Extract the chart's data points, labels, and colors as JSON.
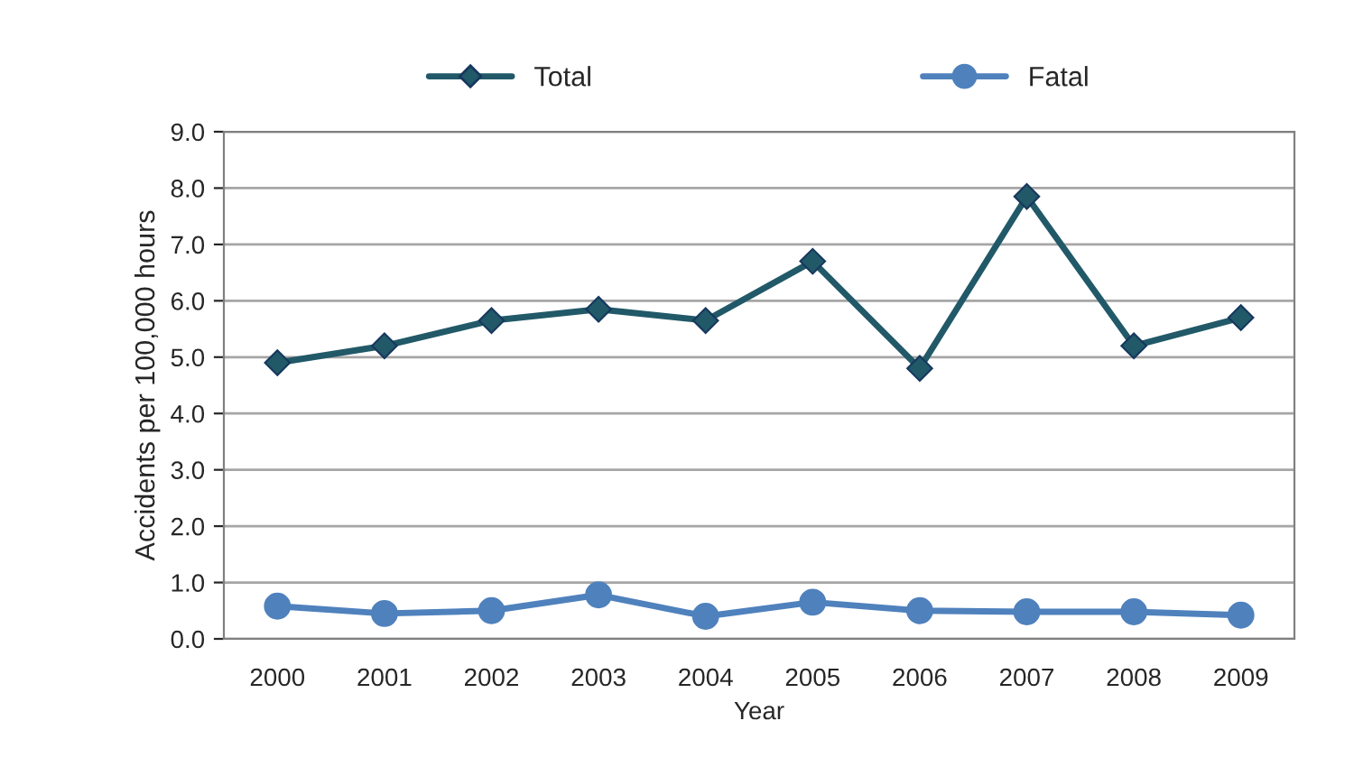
{
  "chart_data": {
    "type": "line",
    "xlabel": "Year",
    "ylabel": "Accidents per 100,000 hours",
    "categories": [
      "2000",
      "2001",
      "2002",
      "2003",
      "2004",
      "2005",
      "2006",
      "2007",
      "2008",
      "2009"
    ],
    "series": [
      {
        "name": "Total",
        "color": "#215968",
        "marker": "diamond",
        "values": [
          4.9,
          5.2,
          5.65,
          5.85,
          5.65,
          6.7,
          4.8,
          7.85,
          5.2,
          5.7
        ]
      },
      {
        "name": "Fatal",
        "color": "#4f81bd",
        "marker": "circle",
        "values": [
          0.58,
          0.45,
          0.5,
          0.78,
          0.4,
          0.65,
          0.5,
          0.48,
          0.48,
          0.42
        ]
      }
    ],
    "ylim": [
      0,
      9
    ],
    "yticks": [
      {
        "value": 0,
        "label": "0.0"
      },
      {
        "value": 1,
        "label": "1.0"
      },
      {
        "value": 2,
        "label": "2.0"
      },
      {
        "value": 3,
        "label": "3.0"
      },
      {
        "value": 4,
        "label": "4.0"
      },
      {
        "value": 5,
        "label": "5.0"
      },
      {
        "value": 6,
        "label": "6.0"
      },
      {
        "value": 7,
        "label": "7.0"
      },
      {
        "value": 8,
        "label": "8.0"
      },
      {
        "value": 9,
        "label": "9.0"
      }
    ],
    "grid": "y",
    "legend": "top",
    "line_style": "solid"
  }
}
